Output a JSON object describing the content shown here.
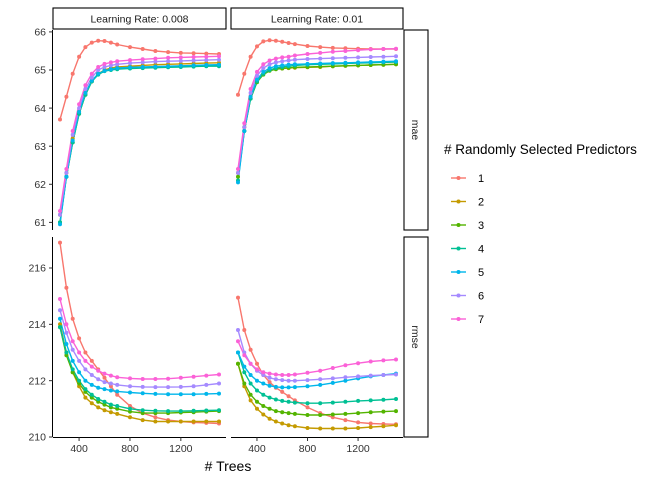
{
  "chart_data": {
    "type": "line",
    "facet_cols": [
      "Learning Rate: 0.008",
      "Learning Rate: 0.01"
    ],
    "facet_rows": [
      "mae",
      "rmse"
    ],
    "xlabel": "# Trees",
    "x_ticks": [
      400,
      800,
      1200
    ],
    "xlim": [
      250,
      1500
    ],
    "row_scales": {
      "mae": {
        "ylim": [
          60.8,
          66.05
        ],
        "ticks": [
          61,
          62,
          63,
          64,
          65,
          66
        ]
      },
      "rmse": {
        "ylim": [
          210.0,
          217.1
        ],
        "ticks": [
          210,
          212,
          214,
          216
        ]
      }
    },
    "legend": {
      "title": "# Randomly Selected Predictors",
      "position": "right",
      "entries": [
        "1",
        "2",
        "3",
        "4",
        "5",
        "6",
        "7"
      ]
    },
    "colors": [
      "#F8766D",
      "#C49A00",
      "#53B400",
      "#00C094",
      "#00B6EB",
      "#A58AFF",
      "#FB61D7"
    ],
    "x": [
      250,
      300,
      350,
      400,
      450,
      500,
      550,
      600,
      650,
      700,
      800,
      900,
      1000,
      1100,
      1200,
      1300,
      1400,
      1500
    ],
    "series": [
      {
        "name": "1",
        "facet": "0.008",
        "metric": "mae",
        "values": [
          63.7,
          64.3,
          64.9,
          65.35,
          65.6,
          65.72,
          65.77,
          65.76,
          65.72,
          65.67,
          65.6,
          65.55,
          65.5,
          65.47,
          65.45,
          65.44,
          65.43,
          65.42
        ]
      },
      {
        "name": "2",
        "facet": "0.008",
        "metric": "mae",
        "values": [
          61.2,
          62.3,
          63.2,
          63.9,
          64.4,
          64.7,
          64.9,
          65.0,
          65.05,
          65.08,
          65.1,
          65.12,
          65.14,
          65.15,
          65.16,
          65.17,
          65.18,
          65.19
        ]
      },
      {
        "name": "3",
        "facet": "0.008",
        "metric": "mae",
        "values": [
          61.0,
          62.2,
          63.1,
          63.85,
          64.35,
          64.7,
          64.9,
          64.98,
          65.02,
          65.04,
          65.06,
          65.07,
          65.08,
          65.09,
          65.1,
          65.11,
          65.12,
          65.13
        ]
      },
      {
        "name": "4",
        "facet": "0.008",
        "metric": "mae",
        "values": [
          61.0,
          62.2,
          63.1,
          63.85,
          64.35,
          64.7,
          64.88,
          64.97,
          65.0,
          65.02,
          65.04,
          65.05,
          65.06,
          65.07,
          65.08,
          65.09,
          65.1,
          65.1
        ]
      },
      {
        "name": "5",
        "facet": "0.008",
        "metric": "mae",
        "values": [
          60.95,
          62.2,
          63.15,
          63.9,
          64.4,
          64.72,
          64.9,
          64.98,
          65.02,
          65.05,
          65.07,
          65.08,
          65.09,
          65.1,
          65.11,
          65.12,
          65.13,
          65.14
        ]
      },
      {
        "name": "6",
        "facet": "0.008",
        "metric": "mae",
        "values": [
          61.2,
          62.3,
          63.3,
          64.0,
          64.5,
          64.8,
          65.0,
          65.08,
          65.12,
          65.15,
          65.18,
          65.2,
          65.22,
          65.23,
          65.24,
          65.25,
          65.26,
          65.27
        ]
      },
      {
        "name": "7",
        "facet": "0.008",
        "metric": "mae",
        "values": [
          61.3,
          62.4,
          63.4,
          64.1,
          64.6,
          64.9,
          65.08,
          65.16,
          65.2,
          65.23,
          65.26,
          65.28,
          65.3,
          65.32,
          65.33,
          65.34,
          65.35,
          65.36
        ]
      },
      {
        "name": "1",
        "facet": "0.01",
        "metric": "mae",
        "values": [
          64.35,
          64.9,
          65.35,
          65.62,
          65.75,
          65.78,
          65.77,
          65.74,
          65.71,
          65.68,
          65.63,
          65.6,
          65.58,
          65.57,
          65.56,
          65.55,
          65.55,
          65.55
        ]
      },
      {
        "name": "2",
        "facet": "0.01",
        "metric": "mae",
        "values": [
          62.3,
          63.5,
          64.3,
          64.7,
          64.9,
          65.0,
          65.03,
          65.04,
          65.05,
          65.06,
          65.07,
          65.08,
          65.1,
          65.11,
          65.12,
          65.13,
          65.14,
          65.15
        ]
      },
      {
        "name": "3",
        "facet": "0.01",
        "metric": "mae",
        "values": [
          62.2,
          63.4,
          64.25,
          64.68,
          64.88,
          64.98,
          65.02,
          65.04,
          65.06,
          65.07,
          65.08,
          65.09,
          65.1,
          65.11,
          65.12,
          65.13,
          65.14,
          65.15
        ]
      },
      {
        "name": "4",
        "facet": "0.01",
        "metric": "mae",
        "values": [
          62.1,
          63.4,
          64.25,
          64.7,
          64.9,
          65.0,
          65.05,
          65.08,
          65.1,
          65.12,
          65.14,
          65.15,
          65.16,
          65.17,
          65.18,
          65.19,
          65.2,
          65.21
        ]
      },
      {
        "name": "5",
        "facet": "0.01",
        "metric": "mae",
        "values": [
          62.05,
          63.4,
          64.3,
          64.75,
          64.95,
          65.05,
          65.1,
          65.12,
          65.14,
          65.15,
          65.16,
          65.17,
          65.18,
          65.19,
          65.2,
          65.21,
          65.22,
          65.23
        ]
      },
      {
        "name": "6",
        "facet": "0.01",
        "metric": "mae",
        "values": [
          62.3,
          63.5,
          64.4,
          64.85,
          65.05,
          65.15,
          65.2,
          65.23,
          65.25,
          65.27,
          65.29,
          65.3,
          65.31,
          65.32,
          65.33,
          65.34,
          65.35,
          65.36
        ]
      },
      {
        "name": "7",
        "facet": "0.01",
        "metric": "mae",
        "values": [
          62.4,
          63.6,
          64.5,
          64.95,
          65.15,
          65.25,
          65.3,
          65.33,
          65.35,
          65.38,
          65.42,
          65.45,
          65.48,
          65.5,
          65.52,
          65.54,
          65.55,
          65.56
        ]
      },
      {
        "name": "1",
        "facet": "0.008",
        "metric": "rmse",
        "values": [
          216.9,
          215.3,
          214.2,
          213.5,
          213.0,
          212.7,
          212.4,
          212.1,
          211.8,
          211.5,
          211.1,
          210.85,
          210.7,
          210.6,
          210.55,
          210.52,
          210.5,
          210.48
        ]
      },
      {
        "name": "2",
        "facet": "0.008",
        "metric": "rmse",
        "values": [
          214.0,
          213.0,
          212.3,
          211.8,
          211.4,
          211.2,
          211.05,
          210.95,
          210.88,
          210.82,
          210.7,
          210.6,
          210.55,
          210.55,
          210.55,
          210.55,
          210.55,
          210.55
        ]
      },
      {
        "name": "3",
        "facet": "0.008",
        "metric": "rmse",
        "values": [
          213.9,
          212.9,
          212.3,
          211.9,
          211.6,
          211.4,
          211.25,
          211.15,
          211.05,
          211.0,
          210.9,
          210.85,
          210.85,
          210.85,
          210.87,
          210.88,
          210.9,
          210.92
        ]
      },
      {
        "name": "4",
        "facet": "0.008",
        "metric": "rmse",
        "values": [
          213.9,
          213.0,
          212.4,
          212.0,
          211.7,
          211.5,
          211.35,
          211.25,
          211.15,
          211.1,
          211.0,
          210.95,
          210.93,
          210.92,
          210.92,
          210.93,
          210.94,
          210.95
        ]
      },
      {
        "name": "5",
        "facet": "0.008",
        "metric": "rmse",
        "values": [
          214.2,
          213.3,
          212.7,
          212.3,
          212.0,
          211.85,
          211.75,
          211.7,
          211.65,
          211.62,
          211.58,
          211.55,
          211.53,
          211.52,
          211.52,
          211.52,
          211.53,
          211.54
        ]
      },
      {
        "name": "6",
        "facet": "0.008",
        "metric": "rmse",
        "values": [
          214.5,
          213.7,
          213.1,
          212.7,
          212.4,
          212.2,
          212.05,
          211.95,
          211.9,
          211.85,
          211.8,
          211.78,
          211.77,
          211.77,
          211.78,
          211.8,
          211.85,
          211.9
        ]
      },
      {
        "name": "7",
        "facet": "0.008",
        "metric": "rmse",
        "values": [
          214.9,
          214.0,
          213.4,
          213.0,
          212.7,
          212.5,
          212.35,
          212.25,
          212.18,
          212.12,
          212.08,
          212.06,
          212.06,
          212.07,
          212.1,
          212.14,
          212.18,
          212.22
        ]
      },
      {
        "name": "1",
        "facet": "0.01",
        "metric": "rmse",
        "values": [
          214.95,
          213.8,
          213.1,
          212.6,
          212.2,
          211.95,
          211.75,
          211.6,
          211.45,
          211.3,
          211.05,
          210.85,
          210.7,
          210.6,
          210.52,
          210.48,
          210.46,
          210.45
        ]
      },
      {
        "name": "2",
        "facet": "0.01",
        "metric": "rmse",
        "values": [
          212.6,
          211.8,
          211.3,
          211.0,
          210.8,
          210.65,
          210.55,
          210.48,
          210.42,
          210.38,
          210.32,
          210.3,
          210.3,
          210.3,
          210.32,
          210.35,
          210.38,
          210.42
        ]
      },
      {
        "name": "3",
        "facet": "0.01",
        "metric": "rmse",
        "values": [
          212.6,
          211.9,
          211.5,
          211.25,
          211.1,
          211.0,
          210.92,
          210.88,
          210.85,
          210.82,
          210.78,
          210.78,
          210.8,
          210.82,
          210.85,
          210.88,
          210.9,
          210.92
        ]
      },
      {
        "name": "4",
        "facet": "0.01",
        "metric": "rmse",
        "values": [
          213.0,
          212.3,
          211.9,
          211.65,
          211.5,
          211.4,
          211.33,
          211.28,
          211.25,
          211.22,
          211.2,
          211.2,
          211.22,
          211.25,
          211.28,
          211.3,
          211.32,
          211.35
        ]
      },
      {
        "name": "5",
        "facet": "0.01",
        "metric": "rmse",
        "values": [
          213.0,
          212.5,
          212.2,
          212.0,
          211.9,
          211.82,
          211.78,
          211.76,
          211.76,
          211.77,
          211.8,
          211.85,
          211.92,
          212.0,
          212.08,
          212.15,
          212.2,
          212.25
        ]
      },
      {
        "name": "6",
        "facet": "0.01",
        "metric": "rmse",
        "values": [
          213.8,
          213.0,
          212.6,
          212.35,
          212.2,
          212.1,
          212.05,
          212.02,
          212.0,
          212.0,
          212.02,
          212.05,
          212.08,
          212.12,
          212.15,
          212.18,
          212.2,
          212.22
        ]
      },
      {
        "name": "7",
        "facet": "0.01",
        "metric": "rmse",
        "values": [
          213.4,
          212.9,
          212.6,
          212.4,
          212.3,
          212.25,
          212.22,
          212.2,
          212.2,
          212.22,
          212.28,
          212.35,
          212.45,
          212.55,
          212.62,
          212.68,
          212.72,
          212.75
        ]
      }
    ]
  }
}
